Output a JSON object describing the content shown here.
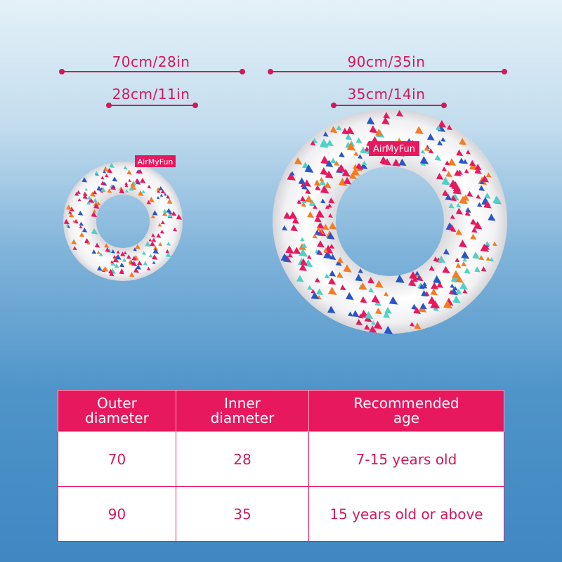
{
  "dimensions": {
    "small": {
      "outer": "70cm/28in",
      "inner": "28cm/11in",
      "brand": "AirMyFun"
    },
    "large": {
      "outer": "90cm/35in",
      "inner": "35cm/14in",
      "brand": "AirMyFun"
    }
  },
  "table": {
    "header": [
      [
        "Outer",
        "diameter"
      ],
      [
        "Inner",
        "diameter"
      ],
      [
        "Recommended",
        "age"
      ]
    ],
    "rows": [
      [
        "70",
        "28",
        "7-15 years old"
      ],
      [
        "90",
        "35",
        "15 years old or above"
      ]
    ]
  }
}
